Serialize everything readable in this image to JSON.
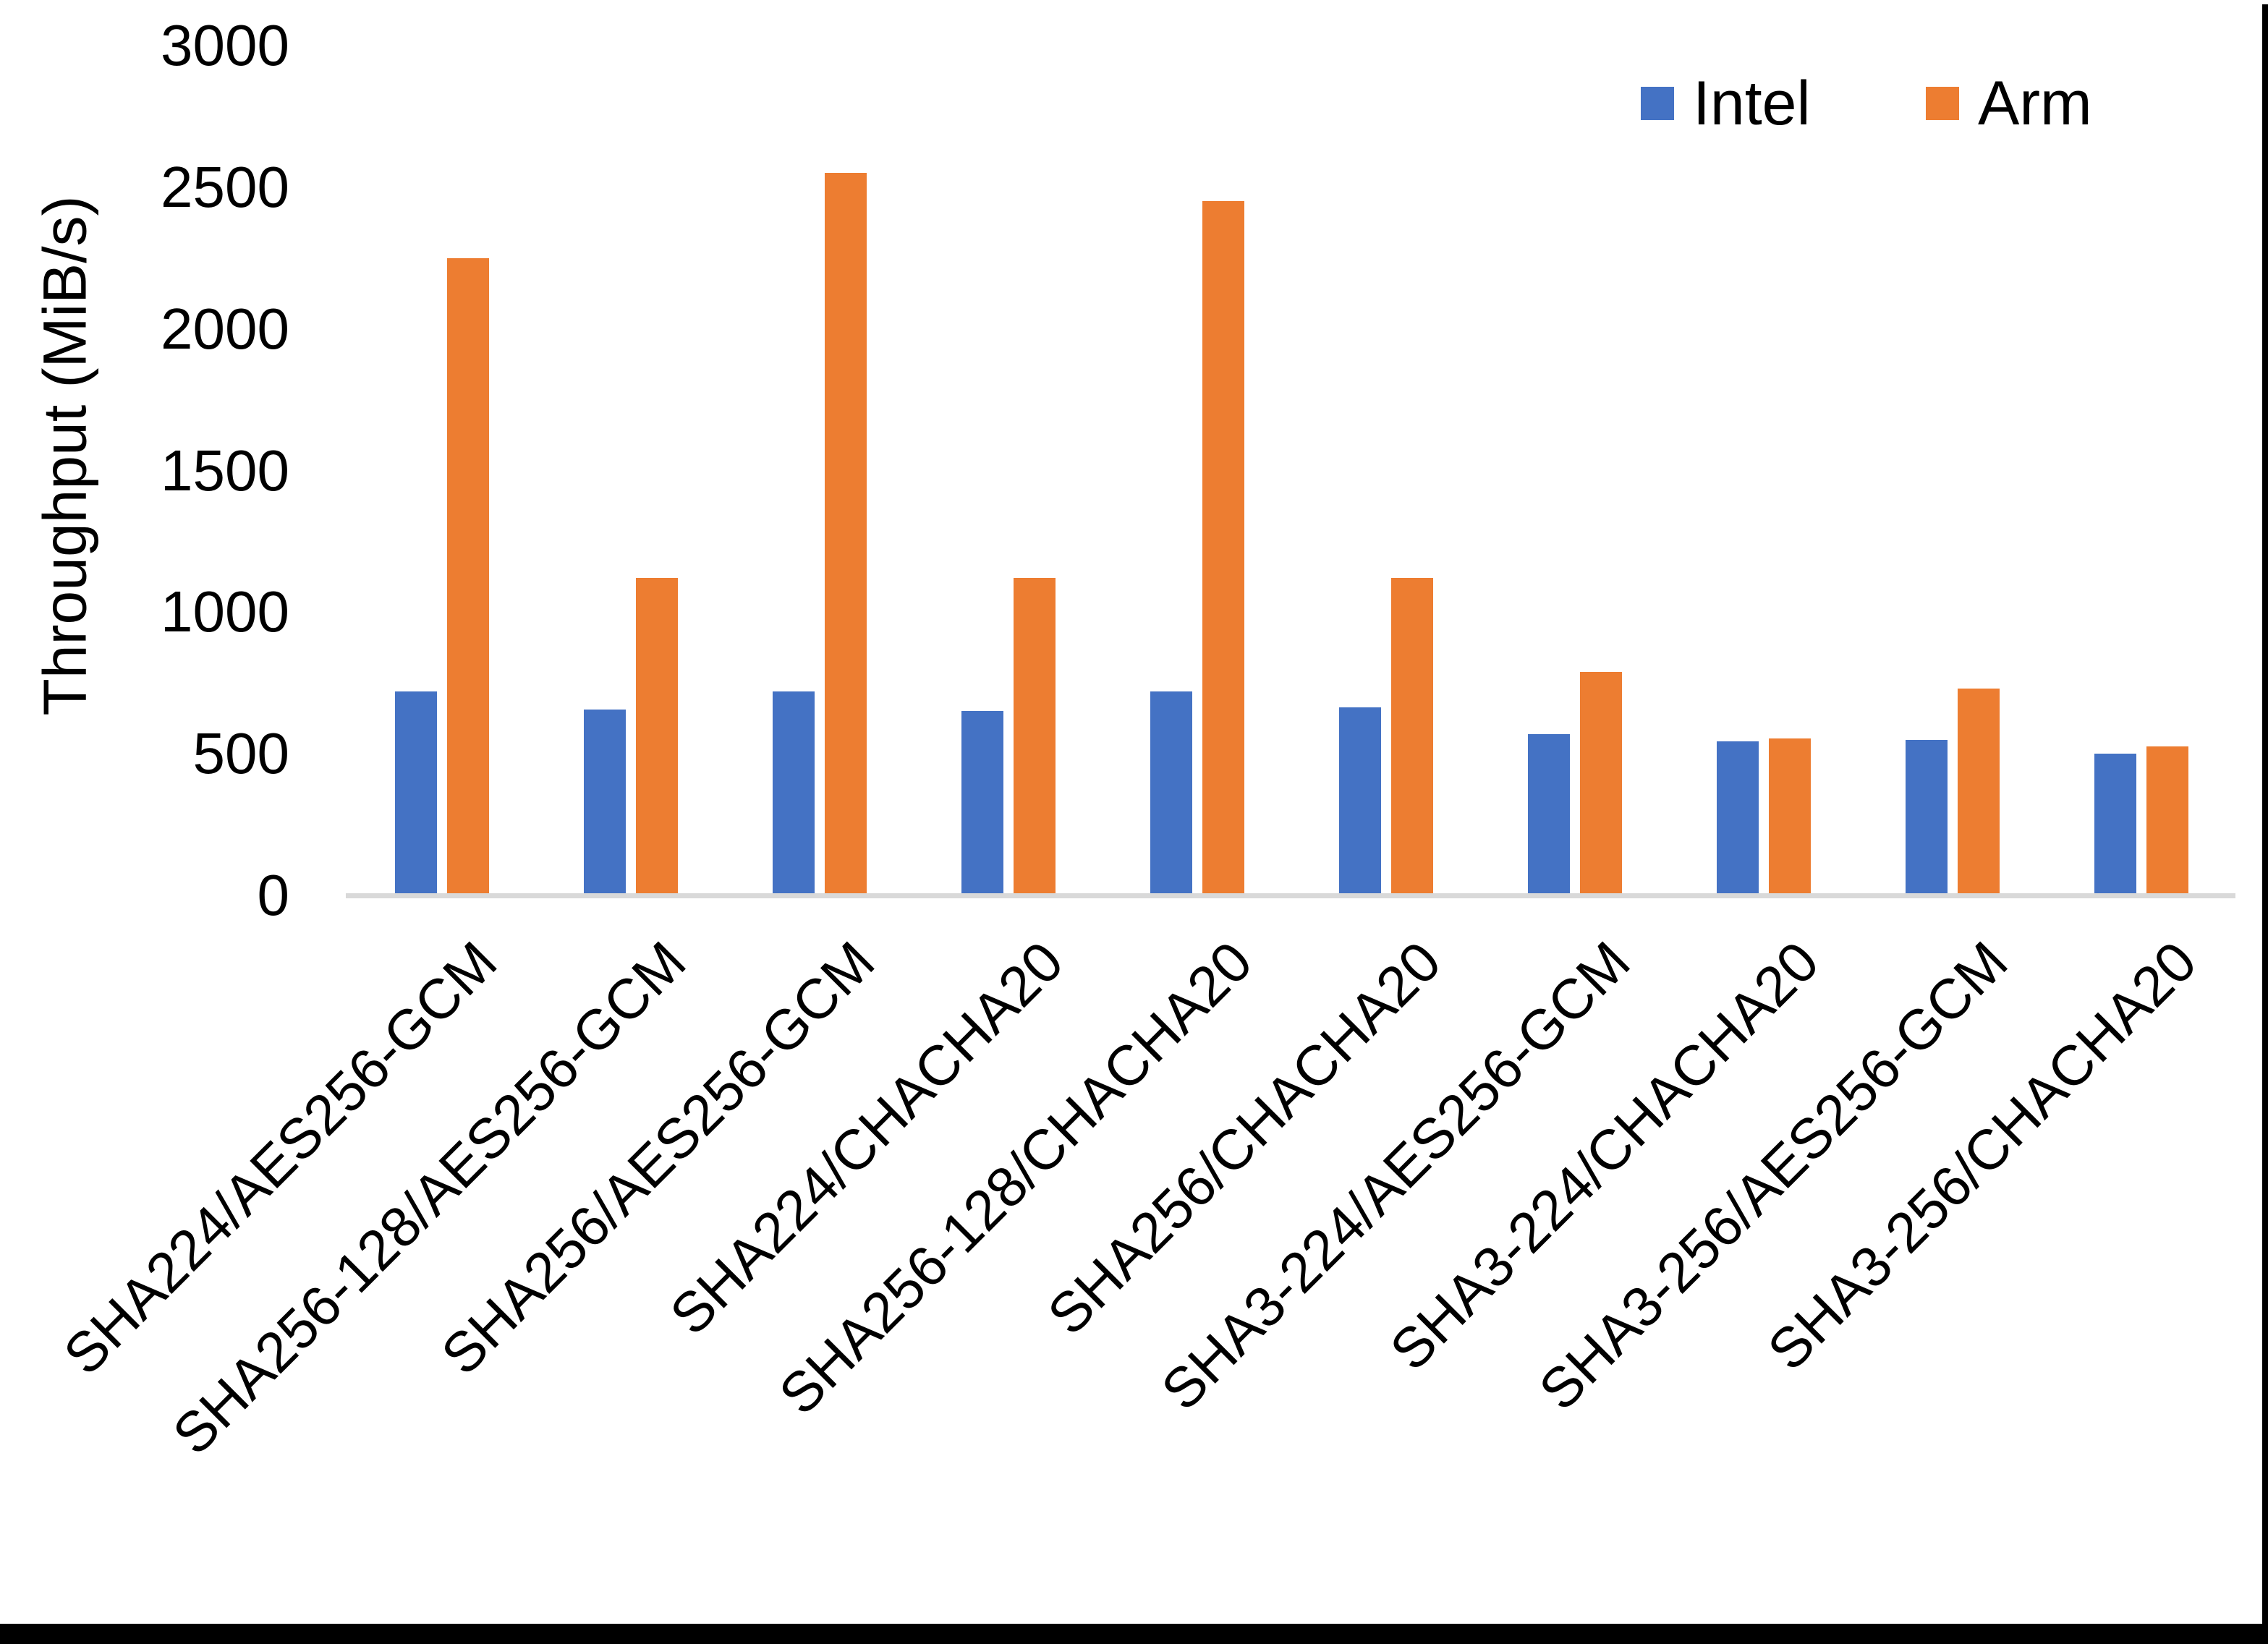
{
  "chart_data": {
    "type": "bar",
    "title": "",
    "ylabel": "Throughput (MiB/s)",
    "xlabel": "",
    "ylim": [
      0,
      3000
    ],
    "ytick_step": 500,
    "yticks": [
      "0",
      "500",
      "1000",
      "1500",
      "2000",
      "2500",
      "3000"
    ],
    "grid": false,
    "legend_position": "top-right",
    "categories": [
      "SHA224/AES256-GCM",
      "SHA256-128/AES256-GCM",
      "SHA256/AES256-GCM",
      "SHA224/CHACHA20",
      "SHA256-128/CHACHA20",
      "SHA256/CHACHA20",
      "SHA3-224/AES256-GCM",
      "SHA3-224/CHACHA20",
      "SHA3-256/AES256-GCM",
      "SHA3-256/CHACHA20"
    ],
    "series": [
      {
        "name": "Intel",
        "color": "#4472C4",
        "values": [
          720,
          655,
          720,
          650,
          720,
          665,
          570,
          545,
          550,
          500
        ]
      },
      {
        "name": "Arm",
        "color": "#ED7D31",
        "values": [
          2250,
          1120,
          2550,
          1120,
          2450,
          1120,
          790,
          555,
          730,
          525
        ]
      }
    ],
    "axis_line_color": "#D9D9D9",
    "text_color": "#000000"
  }
}
